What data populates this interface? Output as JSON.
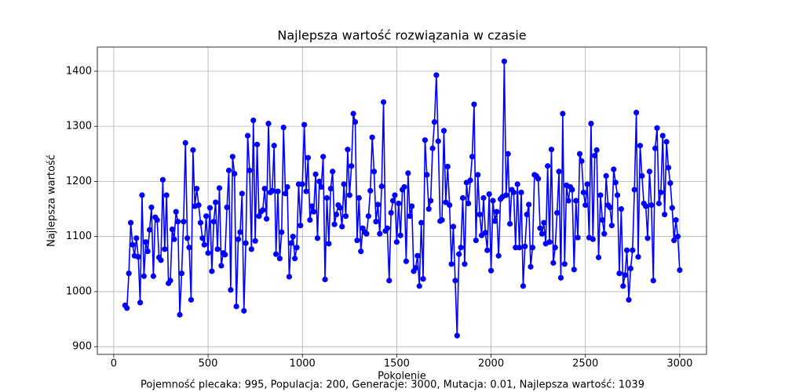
{
  "chart_data": {
    "type": "line",
    "title": "Najlepsza wartość rozwiązania w czasie",
    "xlabel": "Pokolenie",
    "ylabel": "Najlepsza wartość",
    "footer": "Pojemność plecaka: 995, Populacja: 200, Generacje: 3000, Mutacja: 0.01, Najlepsza wartość: 1039",
    "color": "#0000ff",
    "grid": true,
    "xlim": [
      -87,
      3142
    ],
    "ylim": [
      886,
      1444
    ],
    "xticks": [
      0,
      500,
      1000,
      1500,
      2000,
      2500,
      3000
    ],
    "yticks": [
      900,
      1000,
      1100,
      1200,
      1300,
      1400
    ],
    "x": [
      60,
      70,
      80,
      90,
      100,
      110,
      120,
      130,
      140,
      150,
      160,
      170,
      180,
      190,
      200,
      210,
      220,
      230,
      240,
      250,
      260,
      270,
      280,
      290,
      300,
      310,
      320,
      330,
      340,
      350,
      360,
      370,
      380,
      390,
      400,
      410,
      420,
      430,
      440,
      450,
      460,
      470,
      480,
      490,
      500,
      510,
      520,
      530,
      540,
      550,
      560,
      570,
      580,
      590,
      600,
      610,
      620,
      630,
      640,
      650,
      660,
      670,
      680,
      690,
      700,
      710,
      720,
      730,
      740,
      750,
      760,
      770,
      780,
      790,
      800,
      810,
      820,
      830,
      840,
      850,
      860,
      870,
      880,
      890,
      900,
      910,
      920,
      930,
      940,
      950,
      960,
      970,
      980,
      990,
      1000,
      1010,
      1020,
      1030,
      1040,
      1050,
      1060,
      1070,
      1080,
      1090,
      1100,
      1110,
      1120,
      1130,
      1140,
      1150,
      1160,
      1170,
      1180,
      1190,
      1200,
      1210,
      1220,
      1230,
      1240,
      1250,
      1260,
      1270,
      1280,
      1290,
      1300,
      1310,
      1320,
      1330,
      1340,
      1350,
      1360,
      1370,
      1380,
      1390,
      1400,
      1410,
      1420,
      1430,
      1440,
      1450,
      1460,
      1470,
      1480,
      1490,
      1500,
      1510,
      1520,
      1530,
      1540,
      1550,
      1560,
      1570,
      1580,
      1590,
      1600,
      1610,
      1620,
      1630,
      1640,
      1650,
      1660,
      1670,
      1680,
      1690,
      1700,
      1710,
      1720,
      1730,
      1740,
      1750,
      1760,
      1770,
      1780,
      1790,
      1800,
      1810,
      1820,
      1830,
      1840,
      1850,
      1860,
      1870,
      1880,
      1890,
      1900,
      1910,
      1920,
      1930,
      1940,
      1950,
      1960,
      1970,
      1980,
      1990,
      2000,
      2010,
      2020,
      2030,
      2040,
      2050,
      2060,
      2070,
      2080,
      2090,
      2100,
      2110,
      2120,
      2130,
      2140,
      2150,
      2160,
      2170,
      2180,
      2190,
      2200,
      2210,
      2220,
      2230,
      2240,
      2250,
      2260,
      2270,
      2280,
      2290,
      2300,
      2310,
      2320,
      2330,
      2340,
      2350,
      2360,
      2370,
      2380,
      2390,
      2400,
      2410,
      2420,
      2430,
      2440,
      2450,
      2460,
      2470,
      2480,
      2490,
      2500,
      2510,
      2520,
      2530,
      2540,
      2550,
      2560,
      2570,
      2580,
      2590,
      2600,
      2610,
      2620,
      2630,
      2640,
      2650,
      2660,
      2670,
      2680,
      2690,
      2700,
      2710,
      2720,
      2730,
      2740,
      2750,
      2760,
      2770,
      2780,
      2790,
      2800,
      2810,
      2820,
      2830,
      2840,
      2850,
      2860,
      2870,
      2880,
      2890,
      2900,
      2910,
      2920,
      2930,
      2940,
      2950,
      2960,
      2970,
      2980,
      2990,
      3000
    ],
    "values": [
      975,
      970,
      1033,
      1125,
      1085,
      1065,
      1097,
      1063,
      980,
      1175,
      1028,
      1090,
      1073,
      1112,
      1153,
      1028,
      1135,
      1130,
      1062,
      1057,
      1203,
      1077,
      1175,
      1015,
      1020,
      1113,
      1095,
      1145,
      1127,
      958,
      1033,
      1127,
      1270,
      1097,
      1080,
      985,
      1257,
      1155,
      1187,
      1157,
      1125,
      1097,
      1085,
      1137,
      1070,
      1152,
      1037,
      1127,
      1162,
      1077,
      1188,
      1047,
      1070,
      1067,
      1153,
      1220,
      1003,
      1245,
      1214,
      973,
      1095,
      1108,
      1178,
      965,
      1088,
      1283,
      1220,
      1077,
      1311,
      1092,
      1267,
      1137,
      1145,
      1148,
      1187,
      1132,
      1305,
      1180,
      1183,
      1265,
      1068,
      1182,
      1060,
      1108,
      1298,
      1178,
      1190,
      1027,
      1088,
      1100,
      1060,
      1080,
      1195,
      1120,
      1195,
      1303,
      1182,
      1243,
      1130,
      1155,
      1145,
      1213,
      1097,
      1200,
      1190,
      1245,
      1022,
      1170,
      1087,
      1187,
      1218,
      1122,
      1140,
      1157,
      1152,
      1118,
      1195,
      1137,
      1258,
      1175,
      1228,
      1323,
      1308,
      1093,
      1170,
      1073,
      1115,
      1108,
      1105,
      1137,
      1183,
      1280,
      1218,
      1127,
      1158,
      1105,
      1191,
      1344,
      1110,
      1115,
      1020,
      1143,
      1165,
      1175,
      1090,
      1160,
      1102,
      1185,
      1190,
      1055,
      1215,
      1137,
      1155,
      1037,
      1043,
      1065,
      1010,
      1125,
      1023,
      1275,
      1212,
      1150,
      1165,
      1260,
      1308,
      1393,
      1273,
      1128,
      1130,
      1292,
      1162,
      1227,
      1157,
      1050,
      1118,
      1020,
      920,
      1068,
      1080,
      1170,
      1050,
      1198,
      1160,
      1202,
      1245,
      1340,
      1093,
      1212,
      1140,
      1102,
      1170,
      1107,
      1075,
      1177,
      1038,
      1165,
      1128,
      1145,
      1065,
      1168,
      1172,
      1418,
      1175,
      1250,
      1123,
      1185,
      1180,
      1080,
      1195,
      1080,
      1180,
      1010,
      1082,
      1140,
      1158,
      1045,
      1080,
      1212,
      1210,
      1205,
      1115,
      1105,
      1125,
      1087,
      1228,
      1090,
      1258,
      1052,
      1080,
      1143,
      1218,
      1025,
      1323,
      1050,
      1193,
      1165,
      1190,
      1185,
      1040,
      1165,
      1098,
      1250,
      1237,
      1180,
      1157,
      1195,
      1098,
      1305,
      1095,
      1247,
      1257,
      1062,
      1175,
      1130,
      1105,
      1210,
      1157,
      1153,
      1120,
      1222,
      1198,
      1175,
      1033,
      1150,
      1010,
      1030,
      1075,
      985,
      1042,
      1075,
      1185,
      1325,
      1063,
      1265,
      1210,
      1160,
      1155,
      1097,
      1218,
      1157,
      1020,
      1260,
      1297,
      1160,
      1180,
      1283,
      1140,
      1272,
      1225,
      1197,
      1152,
      1093,
      1130,
      1100,
      1039
    ]
  }
}
